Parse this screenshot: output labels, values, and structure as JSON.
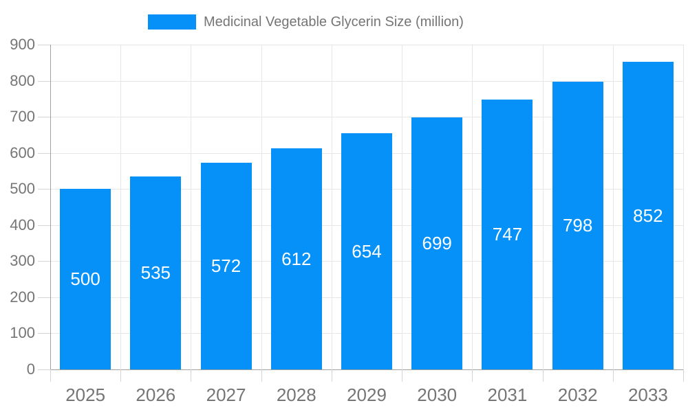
{
  "chart_data": {
    "type": "bar",
    "categories": [
      "2025",
      "2026",
      "2027",
      "2028",
      "2029",
      "2030",
      "2031",
      "2032",
      "2033"
    ],
    "series": [
      {
        "name": "Medicinal Vegetable Glycerin Size (million)",
        "values": [
          500,
          535,
          572,
          612,
          654,
          699,
          747,
          798,
          852
        ]
      }
    ],
    "value_labels": [
      "500",
      "535",
      "572",
      "612",
      "654",
      "699",
      "747",
      "798",
      "852"
    ],
    "yticks": [
      "0",
      "100",
      "200",
      "300",
      "400",
      "500",
      "600",
      "700",
      "800",
      "900"
    ],
    "ylim": [
      0,
      900
    ],
    "ytick_step": 100,
    "xlabel": "",
    "ylabel": "",
    "grid": true,
    "legend_position": "top-center",
    "value_label_position": "center-of-bar"
  },
  "legend": {
    "label": "Medicinal Vegetable Glycerin Size (million)"
  },
  "colors": {
    "bar": "#0591f8",
    "grid": "#e6e6e6",
    "tick": "#d4d4d4",
    "axis": "#a0a0a0",
    "axis_text": "#757575",
    "legend_text": "#757575",
    "value_text": "#ffffff",
    "background": "#ffffff"
  }
}
